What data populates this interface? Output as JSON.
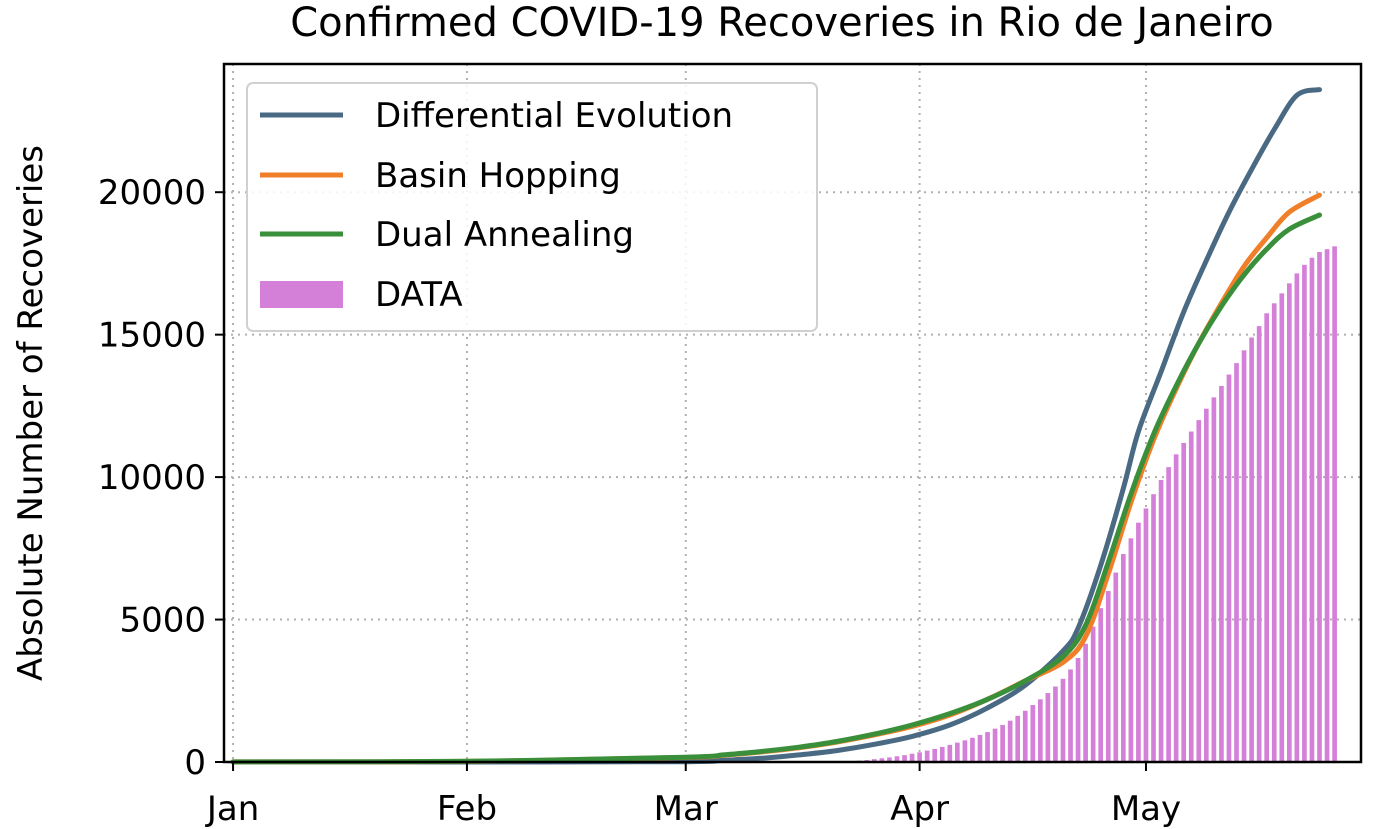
{
  "chart_data": {
    "type": "line",
    "title": "Confirmed COVID-19 Recoveries in Rio de Janeiro",
    "ylabel": "Absolute Number of Recoveries",
    "xlabel": "",
    "x_ticks": [
      {
        "label": "Jan",
        "date": "2020-01-01"
      },
      {
        "label": "Feb",
        "date": "2020-02-01"
      },
      {
        "label": "Mar",
        "date": "2020-03-01"
      },
      {
        "label": "Apr",
        "date": "2020-04-01"
      },
      {
        "label": "May",
        "date": "2020-05-01"
      }
    ],
    "y_ticks": [
      0,
      5000,
      10000,
      15000,
      20000
    ],
    "xlim": [
      "2020-01-01",
      "2020-05-31"
    ],
    "ylim": [
      0,
      24500
    ],
    "grid": true,
    "legend_position": "upper-left",
    "series": [
      {
        "name": "Differential Evolution",
        "kind": "line",
        "color": "#4a6a84",
        "points": [
          [
            "2020-01-01",
            0
          ],
          [
            "2020-02-01",
            0
          ],
          [
            "2020-03-01",
            10
          ],
          [
            "2020-03-06",
            60
          ],
          [
            "2020-03-11",
            130
          ],
          [
            "2020-03-16",
            250
          ],
          [
            "2020-03-21",
            400
          ],
          [
            "2020-03-26",
            620
          ],
          [
            "2020-03-31",
            900
          ],
          [
            "2020-04-05",
            1300
          ],
          [
            "2020-04-10",
            1900
          ],
          [
            "2020-04-15",
            2700
          ],
          [
            "2020-04-20",
            3900
          ],
          [
            "2020-04-22",
            4700
          ],
          [
            "2020-04-25",
            6900
          ],
          [
            "2020-04-28",
            9600
          ],
          [
            "2020-04-30",
            11600
          ],
          [
            "2020-05-03",
            13700
          ],
          [
            "2020-05-06",
            15800
          ],
          [
            "2020-05-09",
            17600
          ],
          [
            "2020-05-12",
            19300
          ],
          [
            "2020-05-15",
            20800
          ],
          [
            "2020-05-18",
            22200
          ],
          [
            "2020-05-21",
            23400
          ],
          [
            "2020-05-24",
            23600
          ]
        ]
      },
      {
        "name": "Basin Hopping",
        "kind": "line",
        "color": "#f07f2a",
        "points": [
          [
            "2020-01-01",
            5
          ],
          [
            "2020-02-01",
            20
          ],
          [
            "2020-03-01",
            160
          ],
          [
            "2020-03-06",
            240
          ],
          [
            "2020-03-11",
            350
          ],
          [
            "2020-03-16",
            500
          ],
          [
            "2020-03-21",
            700
          ],
          [
            "2020-03-26",
            950
          ],
          [
            "2020-03-31",
            1250
          ],
          [
            "2020-04-05",
            1650
          ],
          [
            "2020-04-10",
            2200
          ],
          [
            "2020-04-15",
            2850
          ],
          [
            "2020-04-20",
            3500
          ],
          [
            "2020-04-23",
            4400
          ],
          [
            "2020-04-26",
            6600
          ],
          [
            "2020-04-29",
            9100
          ],
          [
            "2020-05-02",
            11300
          ],
          [
            "2020-05-05",
            13100
          ],
          [
            "2020-05-08",
            14700
          ],
          [
            "2020-05-11",
            16100
          ],
          [
            "2020-05-14",
            17400
          ],
          [
            "2020-05-17",
            18400
          ],
          [
            "2020-05-20",
            19300
          ],
          [
            "2020-05-24",
            19900
          ]
        ]
      },
      {
        "name": "Dual Annealing",
        "kind": "line",
        "color": "#3a8f3a",
        "points": [
          [
            "2020-01-01",
            5
          ],
          [
            "2020-02-01",
            25
          ],
          [
            "2020-03-01",
            170
          ],
          [
            "2020-03-06",
            250
          ],
          [
            "2020-03-11",
            370
          ],
          [
            "2020-03-16",
            520
          ],
          [
            "2020-03-21",
            720
          ],
          [
            "2020-03-26",
            980
          ],
          [
            "2020-03-31",
            1300
          ],
          [
            "2020-04-05",
            1700
          ],
          [
            "2020-04-10",
            2200
          ],
          [
            "2020-04-15",
            2850
          ],
          [
            "2020-04-20",
            3700
          ],
          [
            "2020-04-23",
            4800
          ],
          [
            "2020-04-26",
            7000
          ],
          [
            "2020-04-29",
            9400
          ],
          [
            "2020-05-02",
            11500
          ],
          [
            "2020-05-05",
            13200
          ],
          [
            "2020-05-08",
            14700
          ],
          [
            "2020-05-11",
            16000
          ],
          [
            "2020-05-14",
            17100
          ],
          [
            "2020-05-17",
            18000
          ],
          [
            "2020-05-20",
            18700
          ],
          [
            "2020-05-24",
            19200
          ]
        ]
      },
      {
        "name": "DATA",
        "kind": "bar",
        "color": "#d580d8",
        "points": [
          [
            "2020-03-22",
            10
          ],
          [
            "2020-03-23",
            30
          ],
          [
            "2020-03-24",
            50
          ],
          [
            "2020-03-25",
            70
          ],
          [
            "2020-03-26",
            100
          ],
          [
            "2020-03-27",
            130
          ],
          [
            "2020-03-28",
            160
          ],
          [
            "2020-03-29",
            200
          ],
          [
            "2020-03-30",
            240
          ],
          [
            "2020-03-31",
            290
          ],
          [
            "2020-04-01",
            340
          ],
          [
            "2020-04-02",
            400
          ],
          [
            "2020-04-03",
            460
          ],
          [
            "2020-04-04",
            530
          ],
          [
            "2020-04-05",
            600
          ],
          [
            "2020-04-06",
            680
          ],
          [
            "2020-04-07",
            760
          ],
          [
            "2020-04-08",
            850
          ],
          [
            "2020-04-09",
            950
          ],
          [
            "2020-04-10",
            1050
          ],
          [
            "2020-04-11",
            1170
          ],
          [
            "2020-04-12",
            1300
          ],
          [
            "2020-04-13",
            1450
          ],
          [
            "2020-04-14",
            1620
          ],
          [
            "2020-04-15",
            1800
          ],
          [
            "2020-04-16",
            2000
          ],
          [
            "2020-04-17",
            2200
          ],
          [
            "2020-04-18",
            2420
          ],
          [
            "2020-04-19",
            2650
          ],
          [
            "2020-04-20",
            2920
          ],
          [
            "2020-04-21",
            3250
          ],
          [
            "2020-04-22",
            3650
          ],
          [
            "2020-04-23",
            4150
          ],
          [
            "2020-04-24",
            4750
          ],
          [
            "2020-04-25",
            5400
          ],
          [
            "2020-04-26",
            6000
          ],
          [
            "2020-04-27",
            6650
          ],
          [
            "2020-04-28",
            7300
          ],
          [
            "2020-04-29",
            7850
          ],
          [
            "2020-04-30",
            8400
          ],
          [
            "2020-05-01",
            8900
          ],
          [
            "2020-05-02",
            9400
          ],
          [
            "2020-05-03",
            9900
          ],
          [
            "2020-05-04",
            10350
          ],
          [
            "2020-05-05",
            10800
          ],
          [
            "2020-05-06",
            11200
          ],
          [
            "2020-05-07",
            11600
          ],
          [
            "2020-05-08",
            12000
          ],
          [
            "2020-05-09",
            12400
          ],
          [
            "2020-05-10",
            12800
          ],
          [
            "2020-05-11",
            13200
          ],
          [
            "2020-05-12",
            13600
          ],
          [
            "2020-05-13",
            14000
          ],
          [
            "2020-05-14",
            14450
          ],
          [
            "2020-05-15",
            14900
          ],
          [
            "2020-05-16",
            15300
          ],
          [
            "2020-05-17",
            15750
          ],
          [
            "2020-05-18",
            16100
          ],
          [
            "2020-05-19",
            16450
          ],
          [
            "2020-05-20",
            16800
          ],
          [
            "2020-05-21",
            17150
          ],
          [
            "2020-05-22",
            17450
          ],
          [
            "2020-05-23",
            17700
          ],
          [
            "2020-05-24",
            17900
          ],
          [
            "2020-05-25",
            18000
          ],
          [
            "2020-05-26",
            18100
          ]
        ]
      }
    ]
  }
}
